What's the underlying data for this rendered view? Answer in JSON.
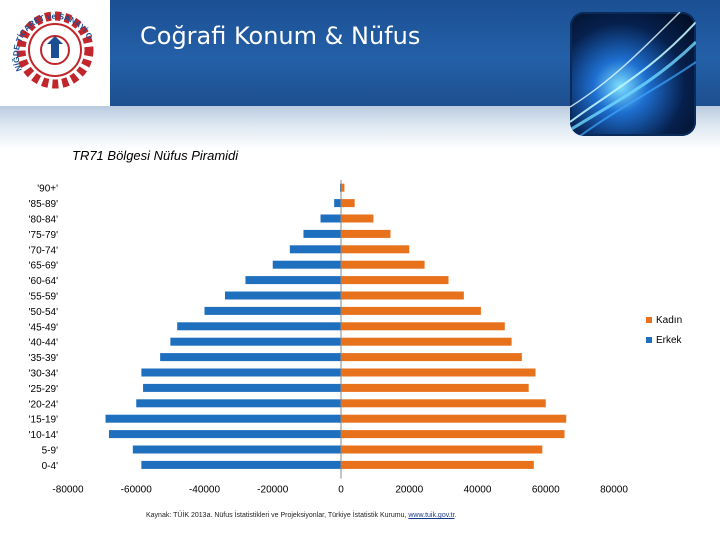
{
  "header": {
    "title": "Coğrafi Konum & Nüfus"
  },
  "logo": {
    "text": "NİĞDE TİCARET ve SANAYİ ODASI"
  },
  "chart_data": {
    "type": "bar",
    "orientation": "horizontal",
    "title": "TR71 Bölgesi Nüfus Piramidi",
    "categories": [
      "'90+'",
      "'85-89'",
      "'80-84'",
      "'75-79'",
      "'70-74'",
      "'65-69'",
      "'60-64'",
      "'55-59'",
      "'50-54'",
      "'45-49'",
      "'40-44'",
      "'35-39'",
      "'30-34'",
      "'25-29'",
      "'20-24'",
      "'15-19'",
      "'10-14'",
      "5-9'",
      "0-4'"
    ],
    "series": [
      {
        "name": "Kadın",
        "color": "#e8711c",
        "values": [
          1000,
          4000,
          9500,
          14500,
          20000,
          24500,
          31500,
          36000,
          41000,
          48000,
          50000,
          53000,
          57000,
          55000,
          60000,
          66000,
          65500,
          59000,
          56500
        ]
      },
      {
        "name": "Erkek",
        "color": "#1f6fbf",
        "values": [
          -300,
          -2000,
          -6000,
          -11000,
          -15000,
          -20000,
          -28000,
          -34000,
          -40000,
          -48000,
          -50000,
          -53000,
          -58500,
          -58000,
          -60000,
          -69000,
          -68000,
          -61000,
          -58500
        ]
      }
    ],
    "xlim": [
      -80000,
      80000
    ],
    "xticks": [
      "-80000",
      "-60000",
      "-40000",
      "-20000",
      "0",
      "20000",
      "40000",
      "60000",
      "80000"
    ],
    "legend": "right",
    "grid": false
  },
  "source": {
    "text": "Kaynak: TÜİK 2013a. Nüfus İstatistikleri ve Projeksiyonlar, Türkiye İstatistik Kurumu, ",
    "link": "www.tuik.gov.tr",
    "suffix": "."
  }
}
